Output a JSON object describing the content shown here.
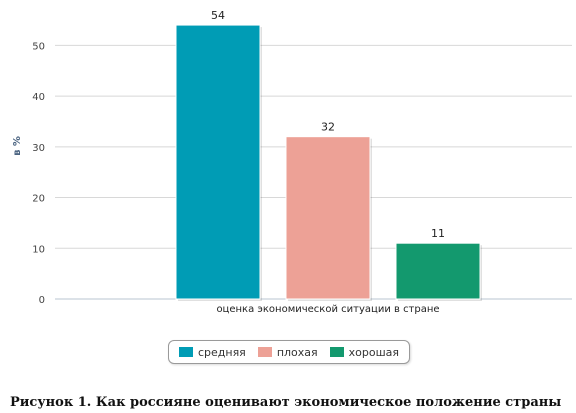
{
  "chart_data": {
    "type": "bar",
    "categories": [
      "оценка экономической ситуации в стране"
    ],
    "series": [
      {
        "name": "средняя",
        "values": [
          54
        ],
        "color": "#009cb5"
      },
      {
        "name": "плохая",
        "values": [
          32
        ],
        "color": "#eda196"
      },
      {
        "name": "хорошая",
        "values": [
          11
        ],
        "color": "#13996e"
      }
    ],
    "ylabel": "в %",
    "xlabel": "",
    "ylim": [
      0,
      55
    ],
    "yticks": [
      0,
      10,
      20,
      30,
      40,
      50
    ],
    "grid": true,
    "data_labels": true,
    "legend_position": "bottom"
  },
  "caption": "Рисунок 1. Как россияне оценивают экономическое положение страны"
}
